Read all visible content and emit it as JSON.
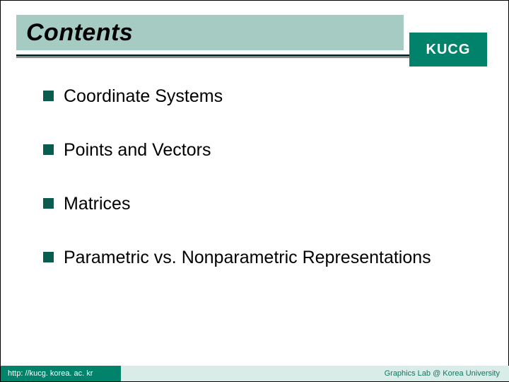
{
  "colors": {
    "title_bg": "#a6cbc2",
    "logo_bg": "#00836a",
    "accent": "#1b5e50",
    "line_dark": "#003333",
    "bullet": "#0a5c4f",
    "footer_bar": "#d9ece7",
    "footer_left_bg": "#00836a",
    "footer_right_text": "#0a7a63"
  },
  "title": "Contents",
  "logo": "KUCG",
  "items": [
    {
      "label": "Coordinate Systems"
    },
    {
      "label": "Points and Vectors"
    },
    {
      "label": "Matrices"
    },
    {
      "label": "Parametric vs. Nonparametric Representations"
    }
  ],
  "footer": {
    "url": "http: //kucg. korea. ac. kr",
    "credit": "Graphics Lab @ Korea University"
  }
}
